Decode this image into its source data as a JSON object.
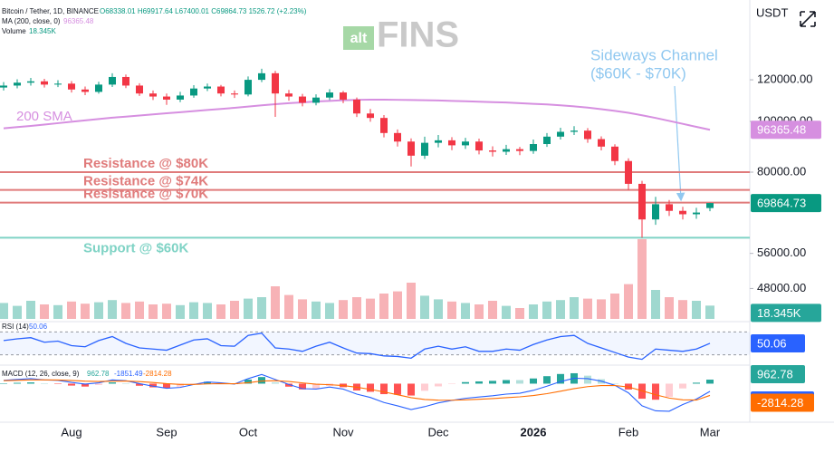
{
  "header": {
    "ohlc_text": "O68338.01 H69917.64 L67400.01 C69864.73 1526.72 (+2.23%)",
    "currency": "USDT",
    "logo_prefix": "alt",
    "logo": "FINS"
  },
  "chart_data": [
    {
      "type": "candlestick",
      "title": "Bitcoin / Tether, 1D, BINANCE",
      "categories": [
        null,
        null,
        null,
        null,
        null,
        "Aug",
        null,
        null,
        null,
        null,
        null,
        null,
        "Sep",
        null,
        null,
        null,
        null,
        null,
        "Oct",
        null,
        null,
        null,
        null,
        null,
        null,
        "Nov",
        null,
        null,
        null,
        null,
        null,
        null,
        "Dec",
        null,
        null,
        null,
        null,
        null,
        null,
        "2026",
        null,
        null,
        null,
        null,
        null,
        null,
        "Feb",
        null,
        null,
        null,
        null,
        null,
        "Mar"
      ],
      "candles": {
        "up_color": "#089981",
        "down_color": "#f23645",
        "open": [
          116000,
          117000,
          118500,
          119200,
          117500,
          118000,
          115000,
          113800,
          117500,
          121500,
          117000,
          113000,
          111500,
          110000,
          112000,
          115500,
          116500,
          113000,
          112500,
          120000,
          123500,
          113000,
          111500,
          108500,
          111000,
          113500,
          110000,
          103500,
          101500,
          95000,
          91500,
          86000,
          91000,
          92000,
          90000,
          91500,
          88000,
          87500,
          88500,
          87800,
          90500,
          93500,
          95500,
          96000,
          92500,
          89500,
          84000,
          76000,
          65000,
          69500,
          67500,
          66500,
          68338.01
        ],
        "high": [
          118800,
          120300,
          121000,
          120500,
          119800,
          119300,
          116500,
          119000,
          123500,
          122800,
          118200,
          114500,
          113000,
          113800,
          117200,
          118000,
          117300,
          114500,
          121800,
          126000,
          124800,
          114800,
          112800,
          112600,
          115200,
          114300,
          111000,
          105600,
          102800,
          96500,
          92800,
          93500,
          94200,
          93300,
          93000,
          92700,
          89600,
          90200,
          89400,
          92300,
          95000,
          97200,
          97900,
          97100,
          93600,
          90400,
          85000,
          77000,
          71800,
          70800,
          68700,
          68400,
          69917.64
        ],
        "low": [
          114500,
          115600,
          117000,
          116000,
          116200,
          113500,
          112200,
          112900,
          116300,
          115700,
          111800,
          109800,
          107500,
          108800,
          110900,
          114200,
          111600,
          110800,
          111600,
          118800,
          102000,
          109500,
          106800,
          107300,
          109800,
          108300,
          101900,
          99800,
          93200,
          89500,
          82000,
          84800,
          89200,
          88100,
          88600,
          86500,
          85700,
          86300,
          86200,
          86700,
          89400,
          92300,
          94200,
          91000,
          88000,
          82500,
          74000,
          60000,
          63500,
          66000,
          65000,
          65200,
          67400.01
        ],
        "close": [
          117000,
          118500,
          119200,
          117500,
          118000,
          115000,
          113800,
          117500,
          121500,
          117000,
          113000,
          111500,
          110000,
          112000,
          115500,
          116500,
          113000,
          112500,
          120000,
          123500,
          113000,
          111500,
          108500,
          111000,
          113500,
          110000,
          103500,
          101500,
          95000,
          91500,
          86000,
          91000,
          92000,
          90000,
          91500,
          88000,
          87500,
          88500,
          87800,
          90500,
          93500,
          95500,
          96000,
          92500,
          89500,
          84000,
          76000,
          65000,
          69500,
          67500,
          66500,
          67000,
          69864.73
        ]
      },
      "ma": {
        "name": "MA (200, close, 0)",
        "label": "200 SMA",
        "color": "#d68fe0",
        "values": [
          97000,
          97500,
          98000,
          98600,
          99200,
          99800,
          100400,
          101000,
          101600,
          102100,
          102600,
          103100,
          103600,
          104100,
          104600,
          105100,
          105600,
          106100,
          106700,
          107300,
          107800,
          108300,
          108700,
          109100,
          109400,
          109700,
          109900,
          110000,
          110000,
          109900,
          109800,
          109700,
          109600,
          109400,
          109200,
          109000,
          108800,
          108600,
          108300,
          108000,
          107700,
          107300,
          106800,
          106200,
          105500,
          104700,
          103800,
          102700,
          101500,
          100200,
          98900,
          97600,
          96365.48
        ]
      },
      "volume": {
        "name": "Volume",
        "value_label": "18.345K",
        "ylim": [
          0,
          110
        ],
        "values": [
          22,
          18,
          25,
          20,
          19,
          24,
          21,
          23,
          26,
          22,
          24,
          20,
          21,
          19,
          23,
          22,
          20,
          25,
          28,
          30,
          45,
          33,
          27,
          24,
          22,
          26,
          30,
          28,
          35,
          38,
          50,
          32,
          27,
          24,
          22,
          20,
          25,
          18,
          15,
          20,
          24,
          26,
          30,
          28,
          27,
          35,
          48,
          110,
          40,
          30,
          26,
          25,
          18.345
        ]
      },
      "log": true,
      "ylim": [
        42000,
        167000
      ],
      "yticks": [
        {
          "value": 48000,
          "label": "48000.00"
        },
        {
          "value": 56000,
          "label": "56000.00"
        },
        {
          "value": 80000,
          "label": "80000.00"
        },
        {
          "value": 100000,
          "label": "100000.00"
        },
        {
          "value": 120000,
          "label": "120000.00"
        }
      ],
      "levels": [
        {
          "value": 80000,
          "label": "Resistance @ $80K",
          "color": "#e07b7b"
        },
        {
          "value": 74000,
          "label": "Resistance @ $74K",
          "color": "#e07b7b"
        },
        {
          "value": 70000,
          "label": "Resistance @ $70K",
          "color": "#e07b7b"
        },
        {
          "value": 60000,
          "label": "Support @ $60K",
          "color": "#7fd3c5"
        }
      ],
      "annotation": {
        "lines": [
          "Sideways Channel",
          "($60K - $70K)"
        ],
        "color": "#90c8f0"
      }
    },
    {
      "type": "rsi",
      "title": "RSI (14)",
      "color": "#2962ff",
      "ylim": [
        15,
        85
      ],
      "bands": [
        30,
        70
      ],
      "values": [
        55,
        58,
        60,
        52,
        54,
        46,
        44,
        55,
        62,
        50,
        42,
        40,
        38,
        47,
        56,
        58,
        46,
        45,
        64,
        68,
        42,
        40,
        36,
        45,
        52,
        42,
        33,
        32,
        28,
        27,
        24,
        40,
        45,
        40,
        44,
        36,
        36,
        40,
        38,
        48,
        56,
        62,
        64,
        50,
        42,
        34,
        26,
        22,
        40,
        38,
        36,
        40,
        50.06
      ]
    },
    {
      "type": "macd",
      "title": "MACD (12, 26, close, 9)",
      "ylim": [
        -9000,
        4000
      ],
      "histogram": {
        "color": "#26a69a",
        "values": [
          100,
          200,
          300,
          0,
          -80,
          -460,
          -700,
          -320,
          300,
          80,
          -500,
          -880,
          -1100,
          -720,
          -20,
          460,
          200,
          -80,
          980,
          1580,
          300,
          -720,
          -1380,
          -1180,
          -550,
          -840,
          -1630,
          -1940,
          -2510,
          -2650,
          -2840,
          -1710,
          -650,
          -40,
          370,
          540,
          670,
          860,
          850,
          1240,
          1790,
          2310,
          2490,
          1910,
          1050,
          40,
          -1400,
          -3600,
          -3840,
          -3150,
          -1140,
          230,
          962.78
        ]
      },
      "series": [
        {
          "color": "#2962ff",
          "values": [
            800,
            1000,
            1200,
            900,
            800,
            300,
            -100,
            200,
            900,
            700,
            0,
            -600,
            -1100,
            -900,
            -200,
            400,
            200,
            -100,
            1200,
            2200,
            1000,
            -200,
            -1200,
            -1300,
            -800,
            -1300,
            -2500,
            -3300,
            -4500,
            -5300,
            -6200,
            -5500,
            -4600,
            -4000,
            -3500,
            -3200,
            -2900,
            -2500,
            -2300,
            -1600,
            -600,
            500,
            1300,
            1200,
            600,
            -400,
            -2200,
            -5300,
            -6500,
            -6600,
            -5000,
            -3700,
            -1851.49
          ]
        },
        {
          "color": "#ff6d00",
          "values": [
            700,
            800,
            900,
            900,
            880,
            760,
            600,
            520,
            600,
            620,
            500,
            280,
            0,
            -180,
            -180,
            -60,
            0,
            -20,
            220,
            620,
            700,
            520,
            180,
            -120,
            -250,
            -460,
            -870,
            -1360,
            -1990,
            -2650,
            -3360,
            -3790,
            -3950,
            -3960,
            -3870,
            -3740,
            -3570,
            -3360,
            -3150,
            -2840,
            -2390,
            -1810,
            -1190,
            -710,
            -450,
            -440,
            -800,
            -1700,
            -2660,
            -3450,
            -3860,
            -3930,
            -2814.28
          ]
        }
      ]
    }
  ]
}
